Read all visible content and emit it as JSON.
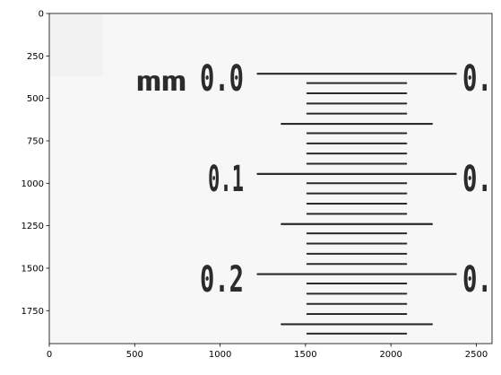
{
  "image": {
    "extent_x": [
      0,
      2592
    ],
    "extent_y": [
      1944,
      0
    ],
    "x_ticks": [
      "0",
      "500",
      "1000",
      "1500",
      "2000",
      "2500"
    ],
    "y_ticks": [
      "0",
      "250",
      "500",
      "750",
      "1000",
      "1250",
      "1500",
      "1750"
    ],
    "background_color": "#f7f7f7",
    "ink_color": "#2b2b2b"
  },
  "micrometer": {
    "unit_label": "mm",
    "labels": [
      "0.0",
      "0.1",
      "0.2"
    ],
    "cut_off_labels": [
      "0.",
      "0.",
      "0."
    ],
    "major_line_y": [
      355,
      945,
      1535
    ],
    "half_line_y": [
      650,
      1240,
      1830
    ],
    "minor_line_y": [
      410,
      470,
      530,
      590,
      705,
      765,
      825,
      885,
      1000,
      1060,
      1120,
      1180,
      1295,
      1355,
      1415,
      1475,
      1590,
      1650,
      1710,
      1770,
      1885
    ],
    "major_x_range": [
      1220,
      2380
    ],
    "half_x_range": [
      1360,
      2240
    ],
    "minor_x_range": [
      1510,
      2090
    ]
  }
}
